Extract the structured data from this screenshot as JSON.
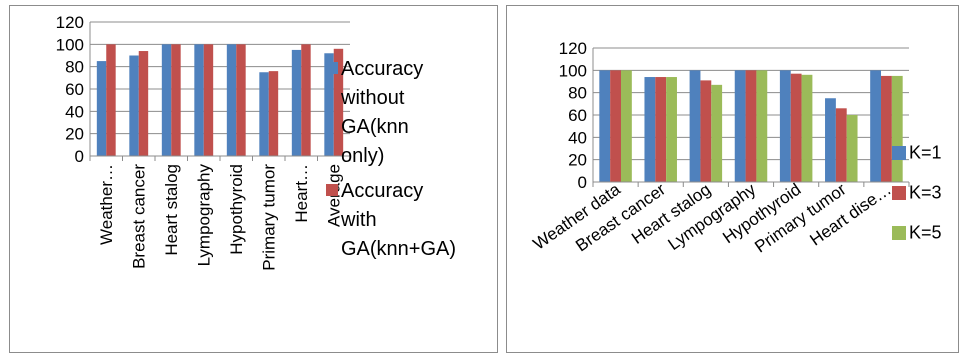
{
  "chart_data": [
    {
      "type": "bar",
      "categories": [
        "Weather…",
        "Breast cancer",
        "Heart stalog",
        "Lympography",
        "Hypothyroid",
        "Primary tumor",
        "Heart…",
        "Average"
      ],
      "series": [
        {
          "name": "Accuracy without GA(knn only)",
          "color": "#4F81BD",
          "values": [
            85,
            90,
            100,
            100,
            100,
            75,
            95,
            92
          ]
        },
        {
          "name": "Accuracy with GA(knn+GA)",
          "color": "#C0504D",
          "values": [
            100,
            94,
            100,
            100,
            100,
            76,
            100,
            96
          ]
        }
      ],
      "legend_lines": [
        [
          "Accuracy",
          "without",
          "GA(knn",
          "only)"
        ],
        [
          "Accuracy",
          "with",
          "GA(knn+GA)"
        ]
      ],
      "ylim": [
        0,
        120
      ],
      "yticks": [
        0,
        20,
        40,
        60,
        80,
        100,
        120
      ],
      "grid": true,
      "legend_position": "right"
    },
    {
      "type": "bar",
      "categories": [
        "Weather data",
        "Breast cancer",
        "Heart stalog",
        "Lympography",
        "Hypothyroid",
        "Primary tumor",
        "Heart dise…"
      ],
      "series": [
        {
          "name": "K=1",
          "color": "#4F81BD",
          "values": [
            100,
            94,
            100,
            100,
            100,
            75,
            100
          ]
        },
        {
          "name": "K=3",
          "color": "#C0504D",
          "values": [
            100,
            94,
            91,
            100,
            97,
            66,
            95
          ]
        },
        {
          "name": "K=5",
          "color": "#9BBB59",
          "values": [
            100,
            94,
            87,
            100,
            96,
            60,
            95
          ]
        }
      ],
      "ylim": [
        0,
        120
      ],
      "yticks": [
        0,
        20,
        40,
        60,
        80,
        100,
        120
      ],
      "grid": true,
      "legend_position": "right"
    }
  ]
}
